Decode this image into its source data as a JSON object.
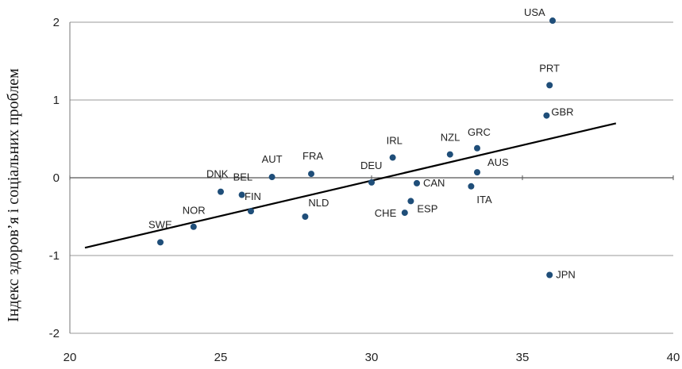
{
  "chart_data": {
    "type": "scatter",
    "title": "",
    "xlabel": "",
    "ylabel": "Індекс здоров’я і соціальних проблем",
    "xlim": [
      20,
      40
    ],
    "ylim": [
      -2,
      2
    ],
    "xticks": [
      20,
      25,
      30,
      35,
      40
    ],
    "yticks": [
      -2,
      -1,
      0,
      1,
      2
    ],
    "x_tick_labels": [
      "20",
      "25",
      "30",
      "35",
      "40"
    ],
    "y_tick_labels": [
      "-2",
      "-1",
      "0",
      "1",
      "2"
    ],
    "grid": "horizontal",
    "points": [
      {
        "label": "USA",
        "x": 36.0,
        "y": 2.02
      },
      {
        "label": "PRT",
        "x": 35.9,
        "y": 1.19
      },
      {
        "label": "GBR",
        "x": 35.8,
        "y": 0.8
      },
      {
        "label": "GRC",
        "x": 33.5,
        "y": 0.38
      },
      {
        "label": "NZL",
        "x": 32.6,
        "y": 0.3
      },
      {
        "label": "AUS",
        "x": 33.5,
        "y": 0.07
      },
      {
        "label": "IRL",
        "x": 30.7,
        "y": 0.26
      },
      {
        "label": "DEU",
        "x": 30.0,
        "y": -0.06
      },
      {
        "label": "CAN",
        "x": 31.5,
        "y": -0.07
      },
      {
        "label": "ITA",
        "x": 33.3,
        "y": -0.11
      },
      {
        "label": "ESP",
        "x": 31.3,
        "y": -0.3
      },
      {
        "label": "CHE",
        "x": 31.1,
        "y": -0.45
      },
      {
        "label": "FRA",
        "x": 28.0,
        "y": 0.05
      },
      {
        "label": "AUT",
        "x": 26.7,
        "y": 0.01
      },
      {
        "label": "DNK",
        "x": 25.0,
        "y": -0.18
      },
      {
        "label": "BEL",
        "x": 25.7,
        "y": -0.22
      },
      {
        "label": "FIN",
        "x": 26.0,
        "y": -0.43
      },
      {
        "label": "NLD",
        "x": 27.8,
        "y": -0.5
      },
      {
        "label": "NOR",
        "x": 24.1,
        "y": -0.63
      },
      {
        "label": "SWE",
        "x": 23.0,
        "y": -0.83
      },
      {
        "label": "JPN",
        "x": 35.9,
        "y": -1.25
      }
    ],
    "trendline": {
      "x": [
        20.5,
        38.1
      ],
      "y": [
        -0.9,
        0.7
      ]
    },
    "point_color": "#1f4e79",
    "line_color": "#000000",
    "grid_color": "#9a9a9a"
  }
}
